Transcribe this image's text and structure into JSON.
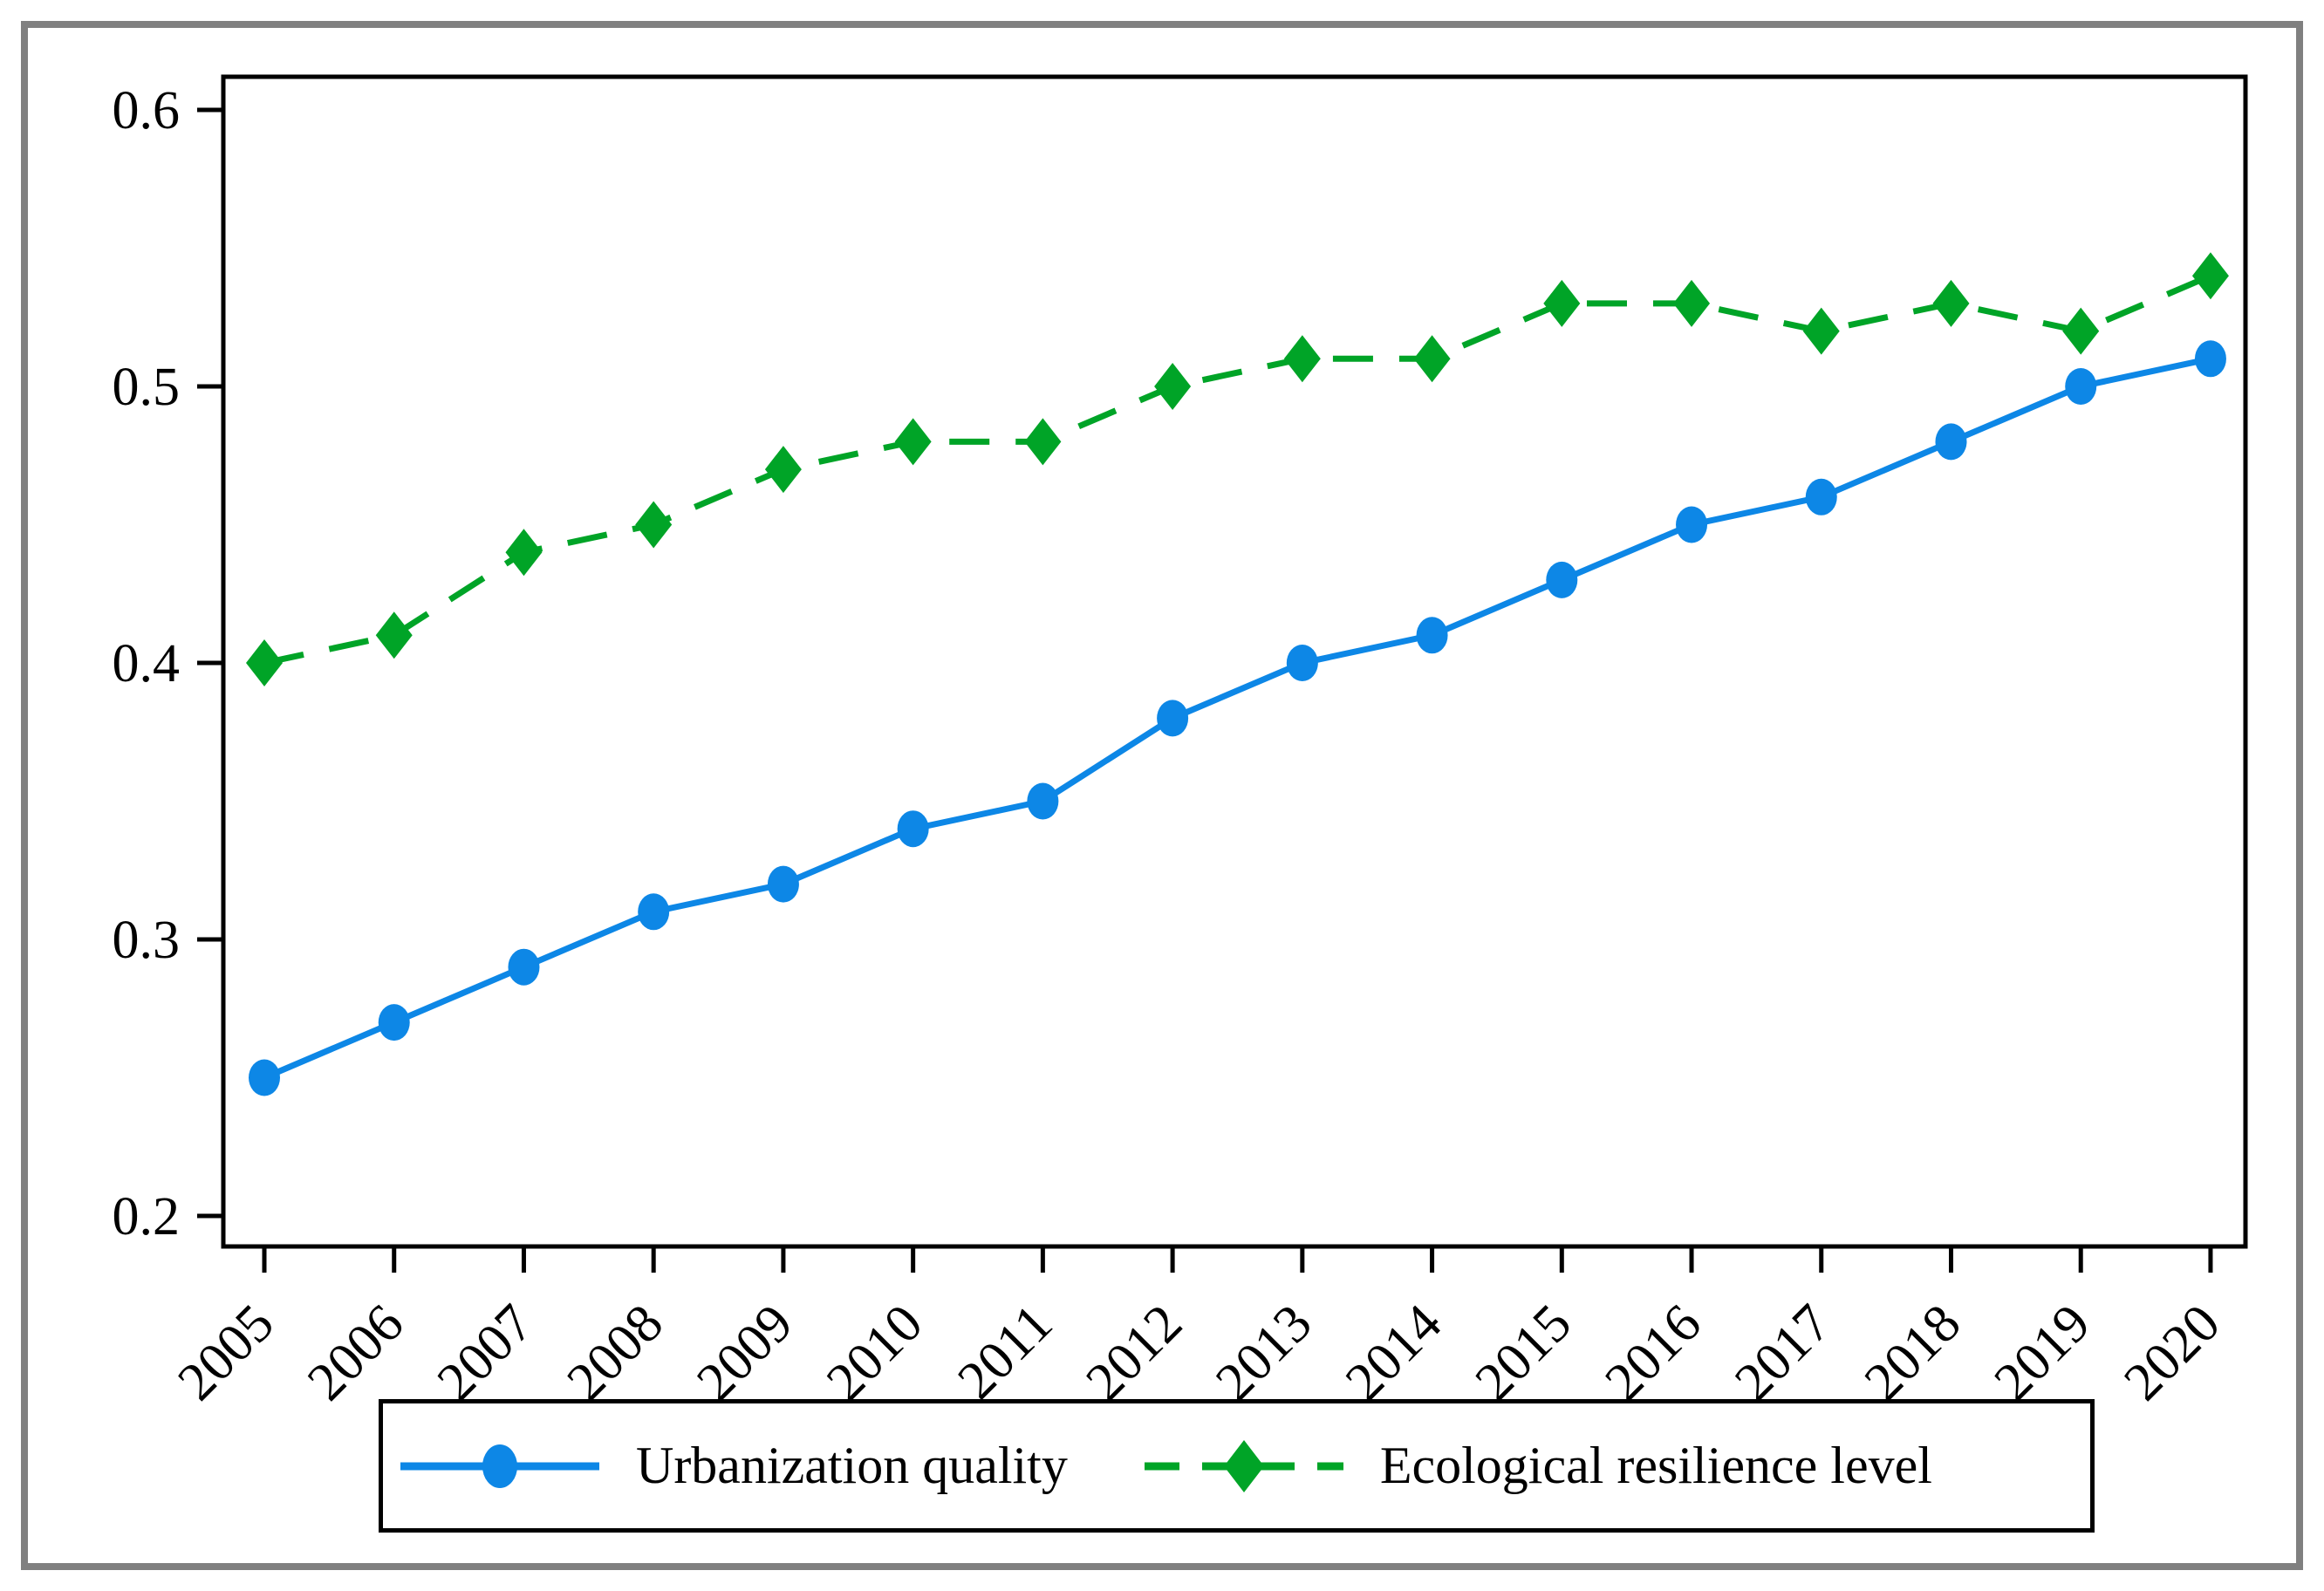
{
  "chart_data": {
    "type": "line",
    "x": [
      2005,
      2006,
      2007,
      2008,
      2009,
      2010,
      2011,
      2012,
      2013,
      2014,
      2015,
      2016,
      2017,
      2018,
      2019,
      2020
    ],
    "series": [
      {
        "id": "urbanization",
        "name": "Urbanization quality",
        "color": "#0d87e6",
        "marker": "circle",
        "line_style": "solid",
        "values": [
          0.25,
          0.27,
          0.29,
          0.31,
          0.32,
          0.34,
          0.35,
          0.38,
          0.4,
          0.41,
          0.43,
          0.45,
          0.46,
          0.48,
          0.5,
          0.51
        ]
      },
      {
        "id": "ecological",
        "name": "Ecological resilience level",
        "color": "#00a427",
        "marker": "diamond",
        "line_style": "dashed",
        "values": [
          0.4,
          0.41,
          0.44,
          0.45,
          0.47,
          0.48,
          0.48,
          0.5,
          0.51,
          0.51,
          0.53,
          0.53,
          0.52,
          0.53,
          0.52,
          0.54
        ]
      }
    ],
    "title": "",
    "xlabel": "",
    "ylabel": "",
    "ylim": [
      0.2,
      0.6
    ],
    "yticks": [
      0.6,
      0.5,
      0.4,
      0.3,
      0.2
    ],
    "ytick_labels": [
      "0.6",
      "0.5",
      "0.4",
      "0.3",
      "0.2"
    ],
    "xtick_labels": [
      "2005",
      "2006",
      "2007",
      "2008",
      "2009",
      "2010",
      "2011",
      "2012",
      "2013",
      "2014",
      "2015",
      "2016",
      "2017",
      "2018",
      "2019",
      "2020"
    ],
    "grid": false,
    "legend_position": "bottom",
    "frame_color": "#000000",
    "outer_border_color": "#808080",
    "background_color": "#ffffff"
  }
}
